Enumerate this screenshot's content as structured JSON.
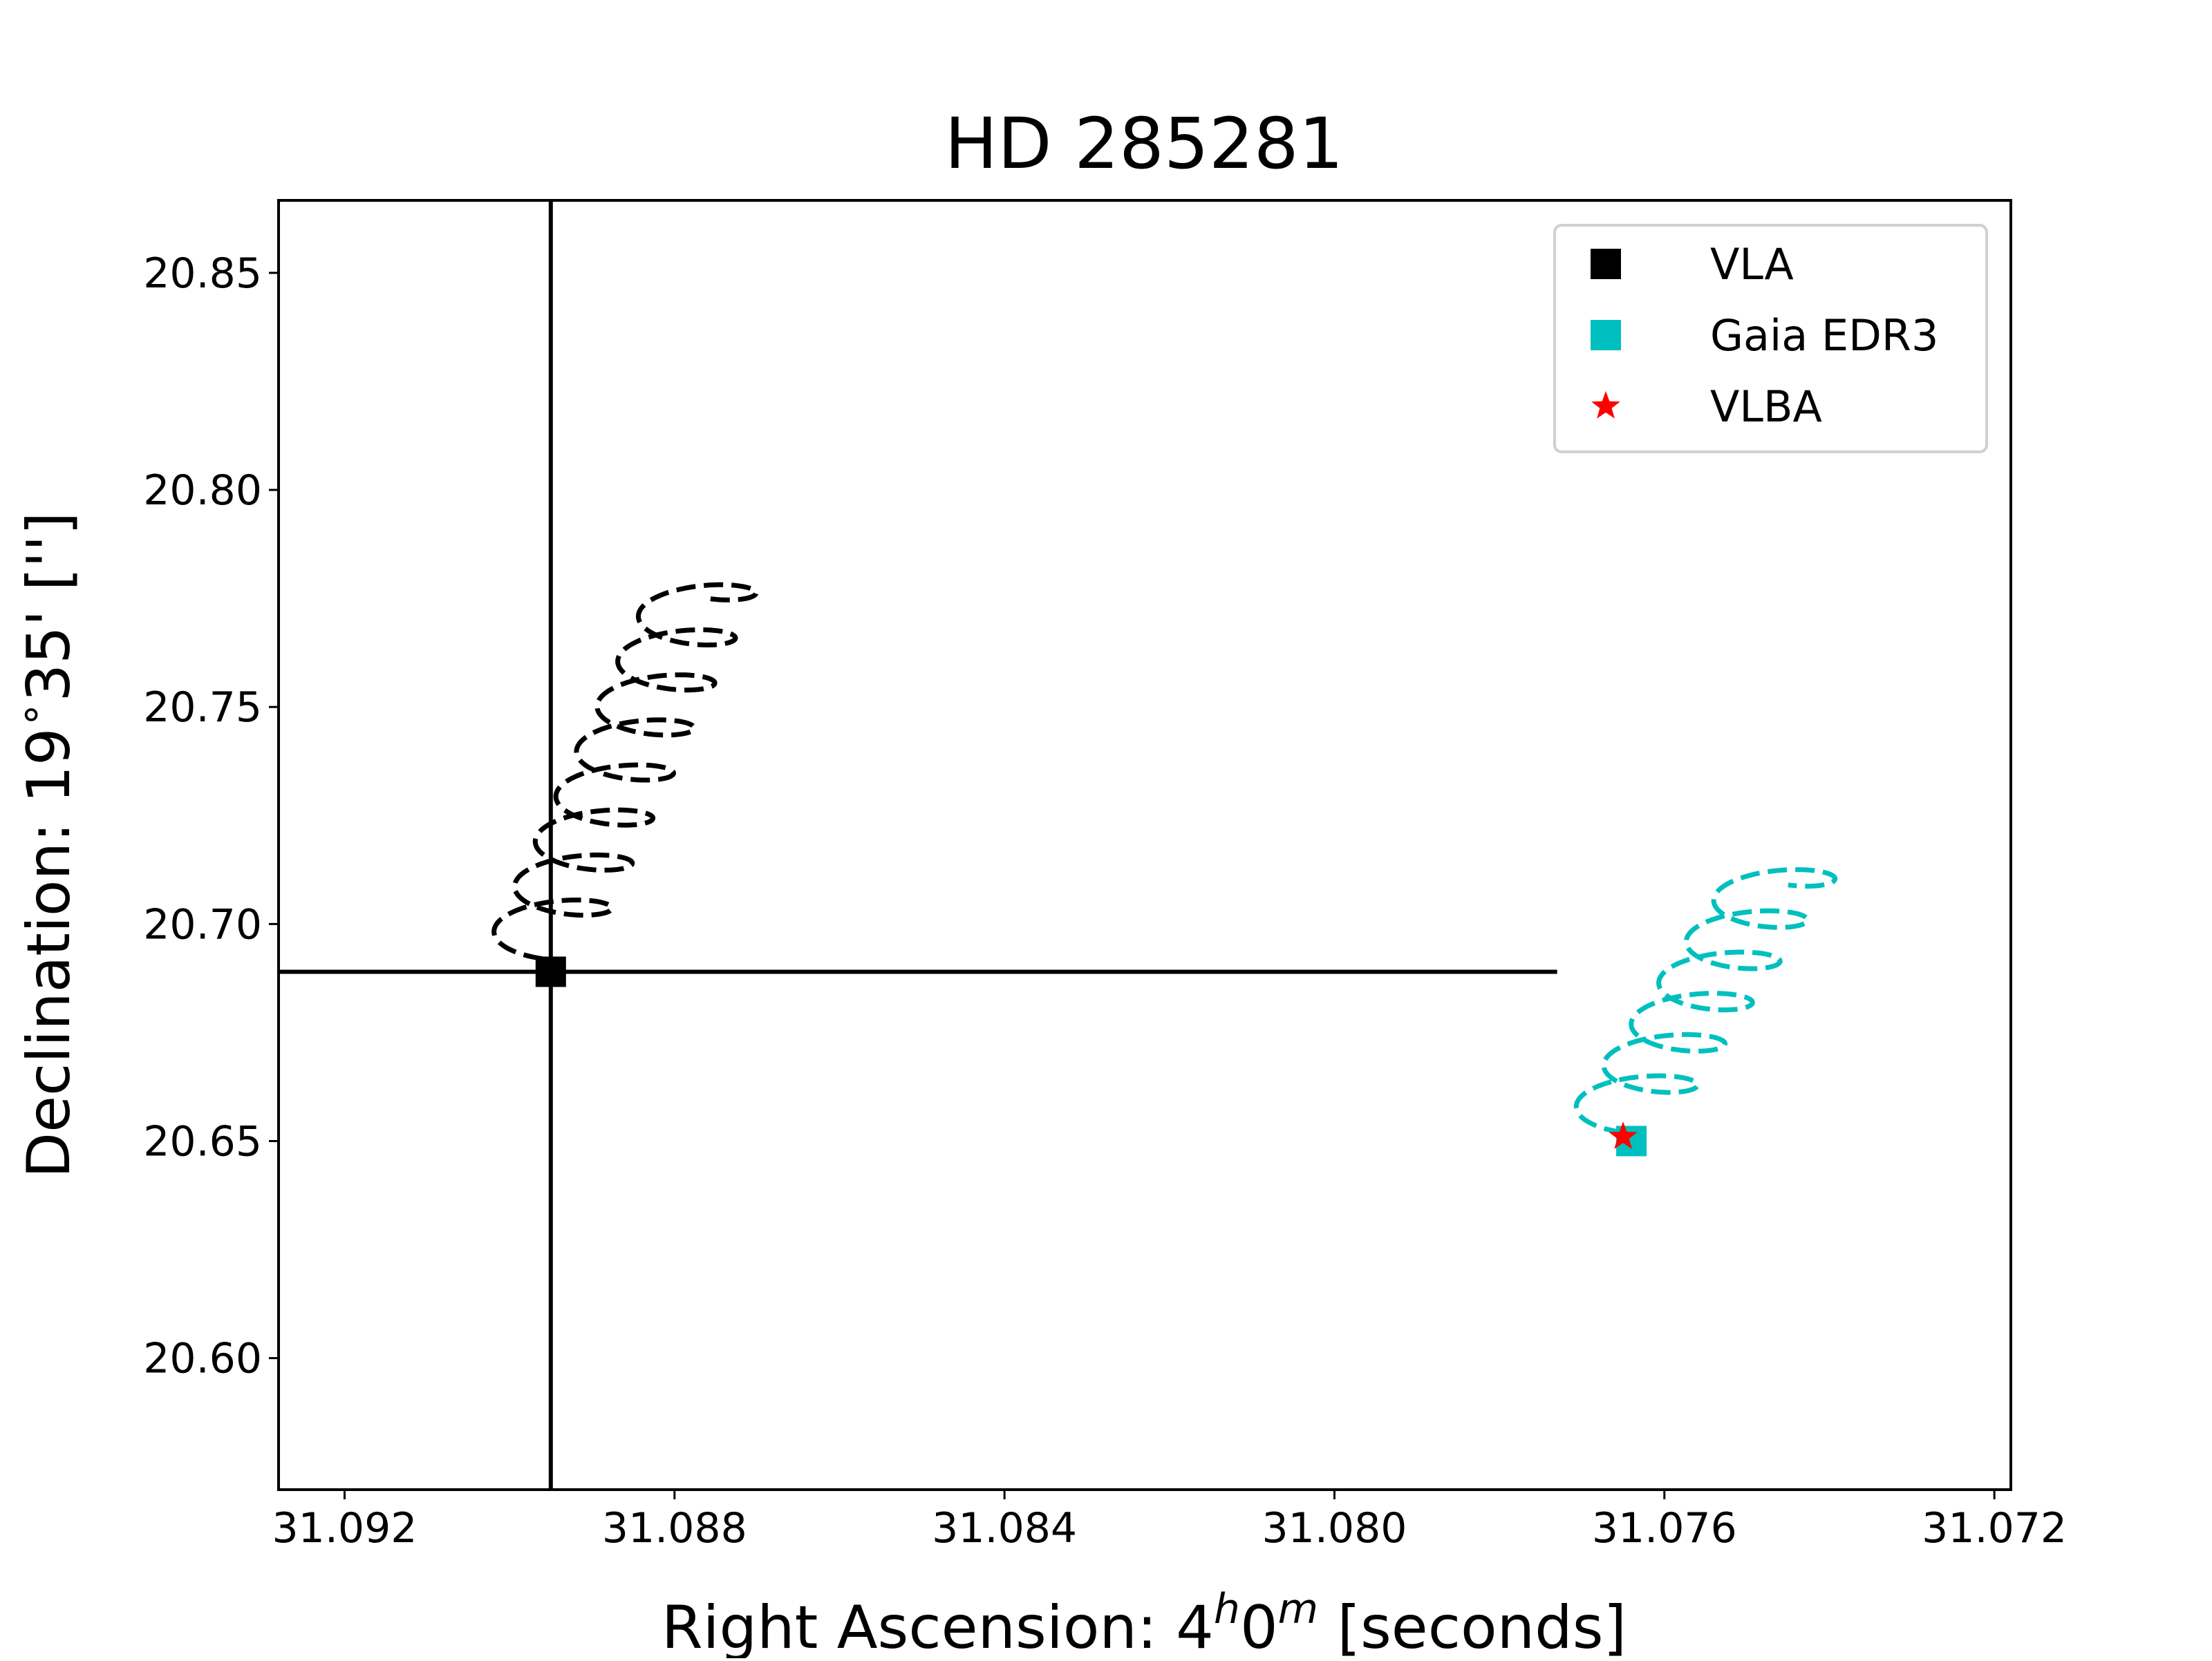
{
  "chart_data": {
    "type": "scatter",
    "title": "HD 285281",
    "xlabel_parts": [
      "Right Ascension: 4",
      "h",
      "0",
      "m",
      " [seconds]"
    ],
    "ylabel": "Declination: 19$^\\circ$35' ['']",
    "ylabel_parts": [
      "Declination: 19",
      "∘",
      "35' ['']"
    ],
    "x_inverted": true,
    "xlim": [
      31.0928,
      31.0718
    ],
    "ylim": [
      20.5697,
      20.8667
    ],
    "xticks": [
      31.092,
      31.088,
      31.084,
      31.08,
      31.076,
      31.072
    ],
    "xtick_labels": [
      "31.092",
      "31.088",
      "31.084",
      "31.080",
      "31.076",
      "31.072"
    ],
    "yticks": [
      20.6,
      20.65,
      20.7,
      20.75,
      20.8,
      20.85
    ],
    "ytick_labels": [
      "20.60",
      "20.65",
      "20.70",
      "20.75",
      "20.80",
      "20.85"
    ],
    "grid": false,
    "legend_position": "top-right",
    "series": [
      {
        "name": "VLA",
        "marker": "square",
        "color": "#000000",
        "points": [
          {
            "x": 31.0895,
            "y": 20.689
          }
        ]
      },
      {
        "name": "Gaia EDR3",
        "marker": "square",
        "color": "#00bfbf",
        "points": [
          {
            "x": 31.0764,
            "y": 20.65
          }
        ]
      },
      {
        "name": "VLBA",
        "marker": "star",
        "color": "#ff0000",
        "points": [
          {
            "x": 31.0765,
            "y": 20.651
          }
        ]
      }
    ],
    "crosshair": {
      "color": "#000000",
      "x": 31.0895,
      "y_range": [
        20.5697,
        20.8667
      ],
      "y": 20.689,
      "x_range": [
        31.0928,
        31.0773
      ]
    },
    "trajectories": [
      {
        "color": "#000000",
        "style": "dashed",
        "start": {
          "x": 31.0896,
          "y": 20.692
        },
        "end": {
          "x": 31.0876,
          "y": 20.775
        },
        "amplitude_x": 0.00065,
        "amplitude_y": 0.004,
        "cycles": 8
      },
      {
        "color": "#00bfbf",
        "style": "dashed",
        "start": {
          "x": 31.0765,
          "y": 20.652
        },
        "end": {
          "x": 31.0745,
          "y": 20.709
        },
        "amplitude_x": 0.00065,
        "amplitude_y": 0.004,
        "cycles": 6
      }
    ]
  }
}
